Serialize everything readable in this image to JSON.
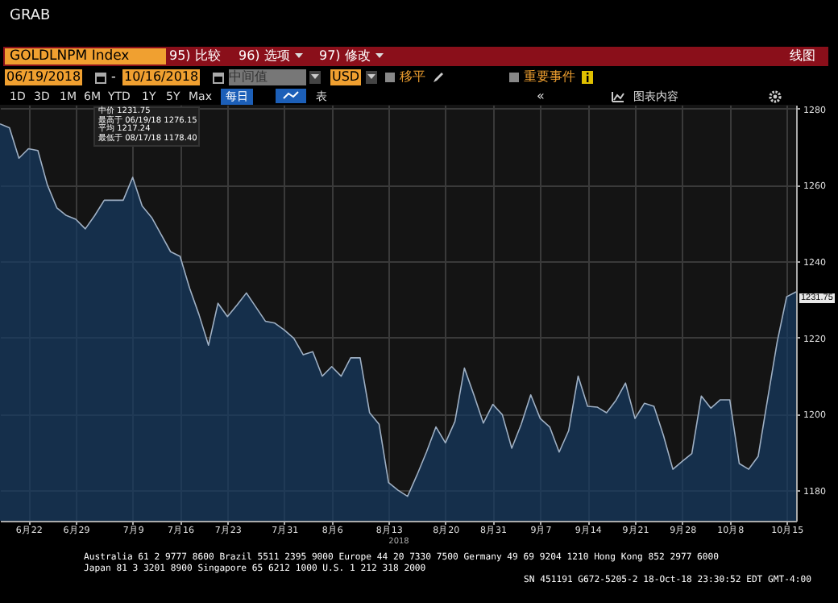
{
  "chart_data": {
    "type": "area",
    "title": "GOLDLNPM Index",
    "xlabel": "2018",
    "categories": [
      null,
      null,
      null,
      "6月22",
      null,
      null,
      null,
      null,
      "6月29",
      null,
      null,
      null,
      null,
      null,
      "7月9",
      null,
      null,
      null,
      null,
      "7月16",
      null,
      null,
      null,
      null,
      "7月23",
      null,
      null,
      null,
      null,
      null,
      "7月31",
      null,
      null,
      null,
      null,
      "8月6",
      null,
      null,
      null,
      null,
      null,
      "8月13",
      null,
      null,
      null,
      null,
      null,
      "8月20",
      null,
      null,
      null,
      null,
      "8月31",
      null,
      null,
      null,
      null,
      "9月7",
      null,
      null,
      null,
      null,
      "9月14",
      null,
      null,
      null,
      null,
      "9月21",
      null,
      null,
      null,
      null,
      "9月28",
      null,
      null,
      null,
      null,
      "10月8",
      null,
      null,
      null,
      null,
      null,
      "10月15",
      null
    ],
    "series": [
      {
        "color": "#163a63",
        "values": [
          1276,
          1275,
          1267,
          1269.5,
          1269,
          1260,
          1254,
          1252,
          1251,
          1248.5,
          1252,
          1256,
          1256,
          1256,
          1262,
          1254.5,
          1251.5,
          1247,
          1242.5,
          1241.3,
          1233,
          1226,
          1218,
          1229,
          1225.5,
          1228.5,
          1231.7,
          1228,
          1224.3,
          1223.8,
          1222,
          1219.8,
          1215.5,
          1216.3,
          1209.9,
          1212.4,
          1209.9,
          1214.7,
          1214.7,
          1200.3,
          1197.3,
          1182,
          1180,
          1178.4,
          1184,
          1190,
          1196.6,
          1192.4,
          1198,
          1212,
          1205,
          1197.6,
          1202.5,
          1199.8,
          1191,
          1197.3,
          1205,
          1198.8,
          1196.6,
          1190,
          1195.6,
          1209.9,
          1202,
          1201.8,
          1200.3,
          1203.6,
          1208.1,
          1198.8,
          1202.8,
          1202,
          1194.4,
          1185.5,
          1187.6,
          1189.6,
          1204.7,
          1201.5,
          1203.7,
          1203.7,
          1187,
          1185.5,
          1188.9,
          1204,
          1218.8,
          1230.7,
          1232
        ]
      }
    ],
    "ylim": [
      1172,
      1281
    ],
    "yticks": [
      {
        "value": 1180,
        "label": "1180"
      },
      {
        "value": 1200,
        "label": "1200"
      },
      {
        "value": 1220,
        "label": "1220"
      },
      {
        "value": 1240,
        "label": "1240"
      },
      {
        "value": 1260,
        "label": "1260"
      },
      {
        "value": 1280,
        "label": "1280"
      }
    ],
    "grid": true,
    "annotations": [
      "GRAB",
      "95) 比较",
      "96) 选项",
      "97) 修改",
      "线图",
      "06/19/2018",
      "-",
      "10/16/2018",
      "中间值",
      "USD",
      "移平",
      "重要事件",
      "1D",
      "3D",
      "1M",
      "6M",
      "YTD",
      "1Y",
      "5Y",
      "Max",
      "每日",
      "表",
      "«",
      "图表内容",
      "中价 1231.75",
      "最高于 06/19/18 1276.15",
      "平均 1217.24",
      "最低于 08/17/18 1178.40",
      "Australia 61 2 9777 8600 Brazil 5511 2395 9000 Europe 44 20 7330 7500 Germany 49 69 9204 1210 Hong Kong 852 2977 6000",
      "Japan 81 3 3201 8900      Singapore 65 6212 1000      U.S. 1 212 318 2000",
      "SN 451191 G672-5205-2 18-Oct-18 23:30:52 EDT  GMT-4:00",
      "1231.75"
    ]
  }
}
